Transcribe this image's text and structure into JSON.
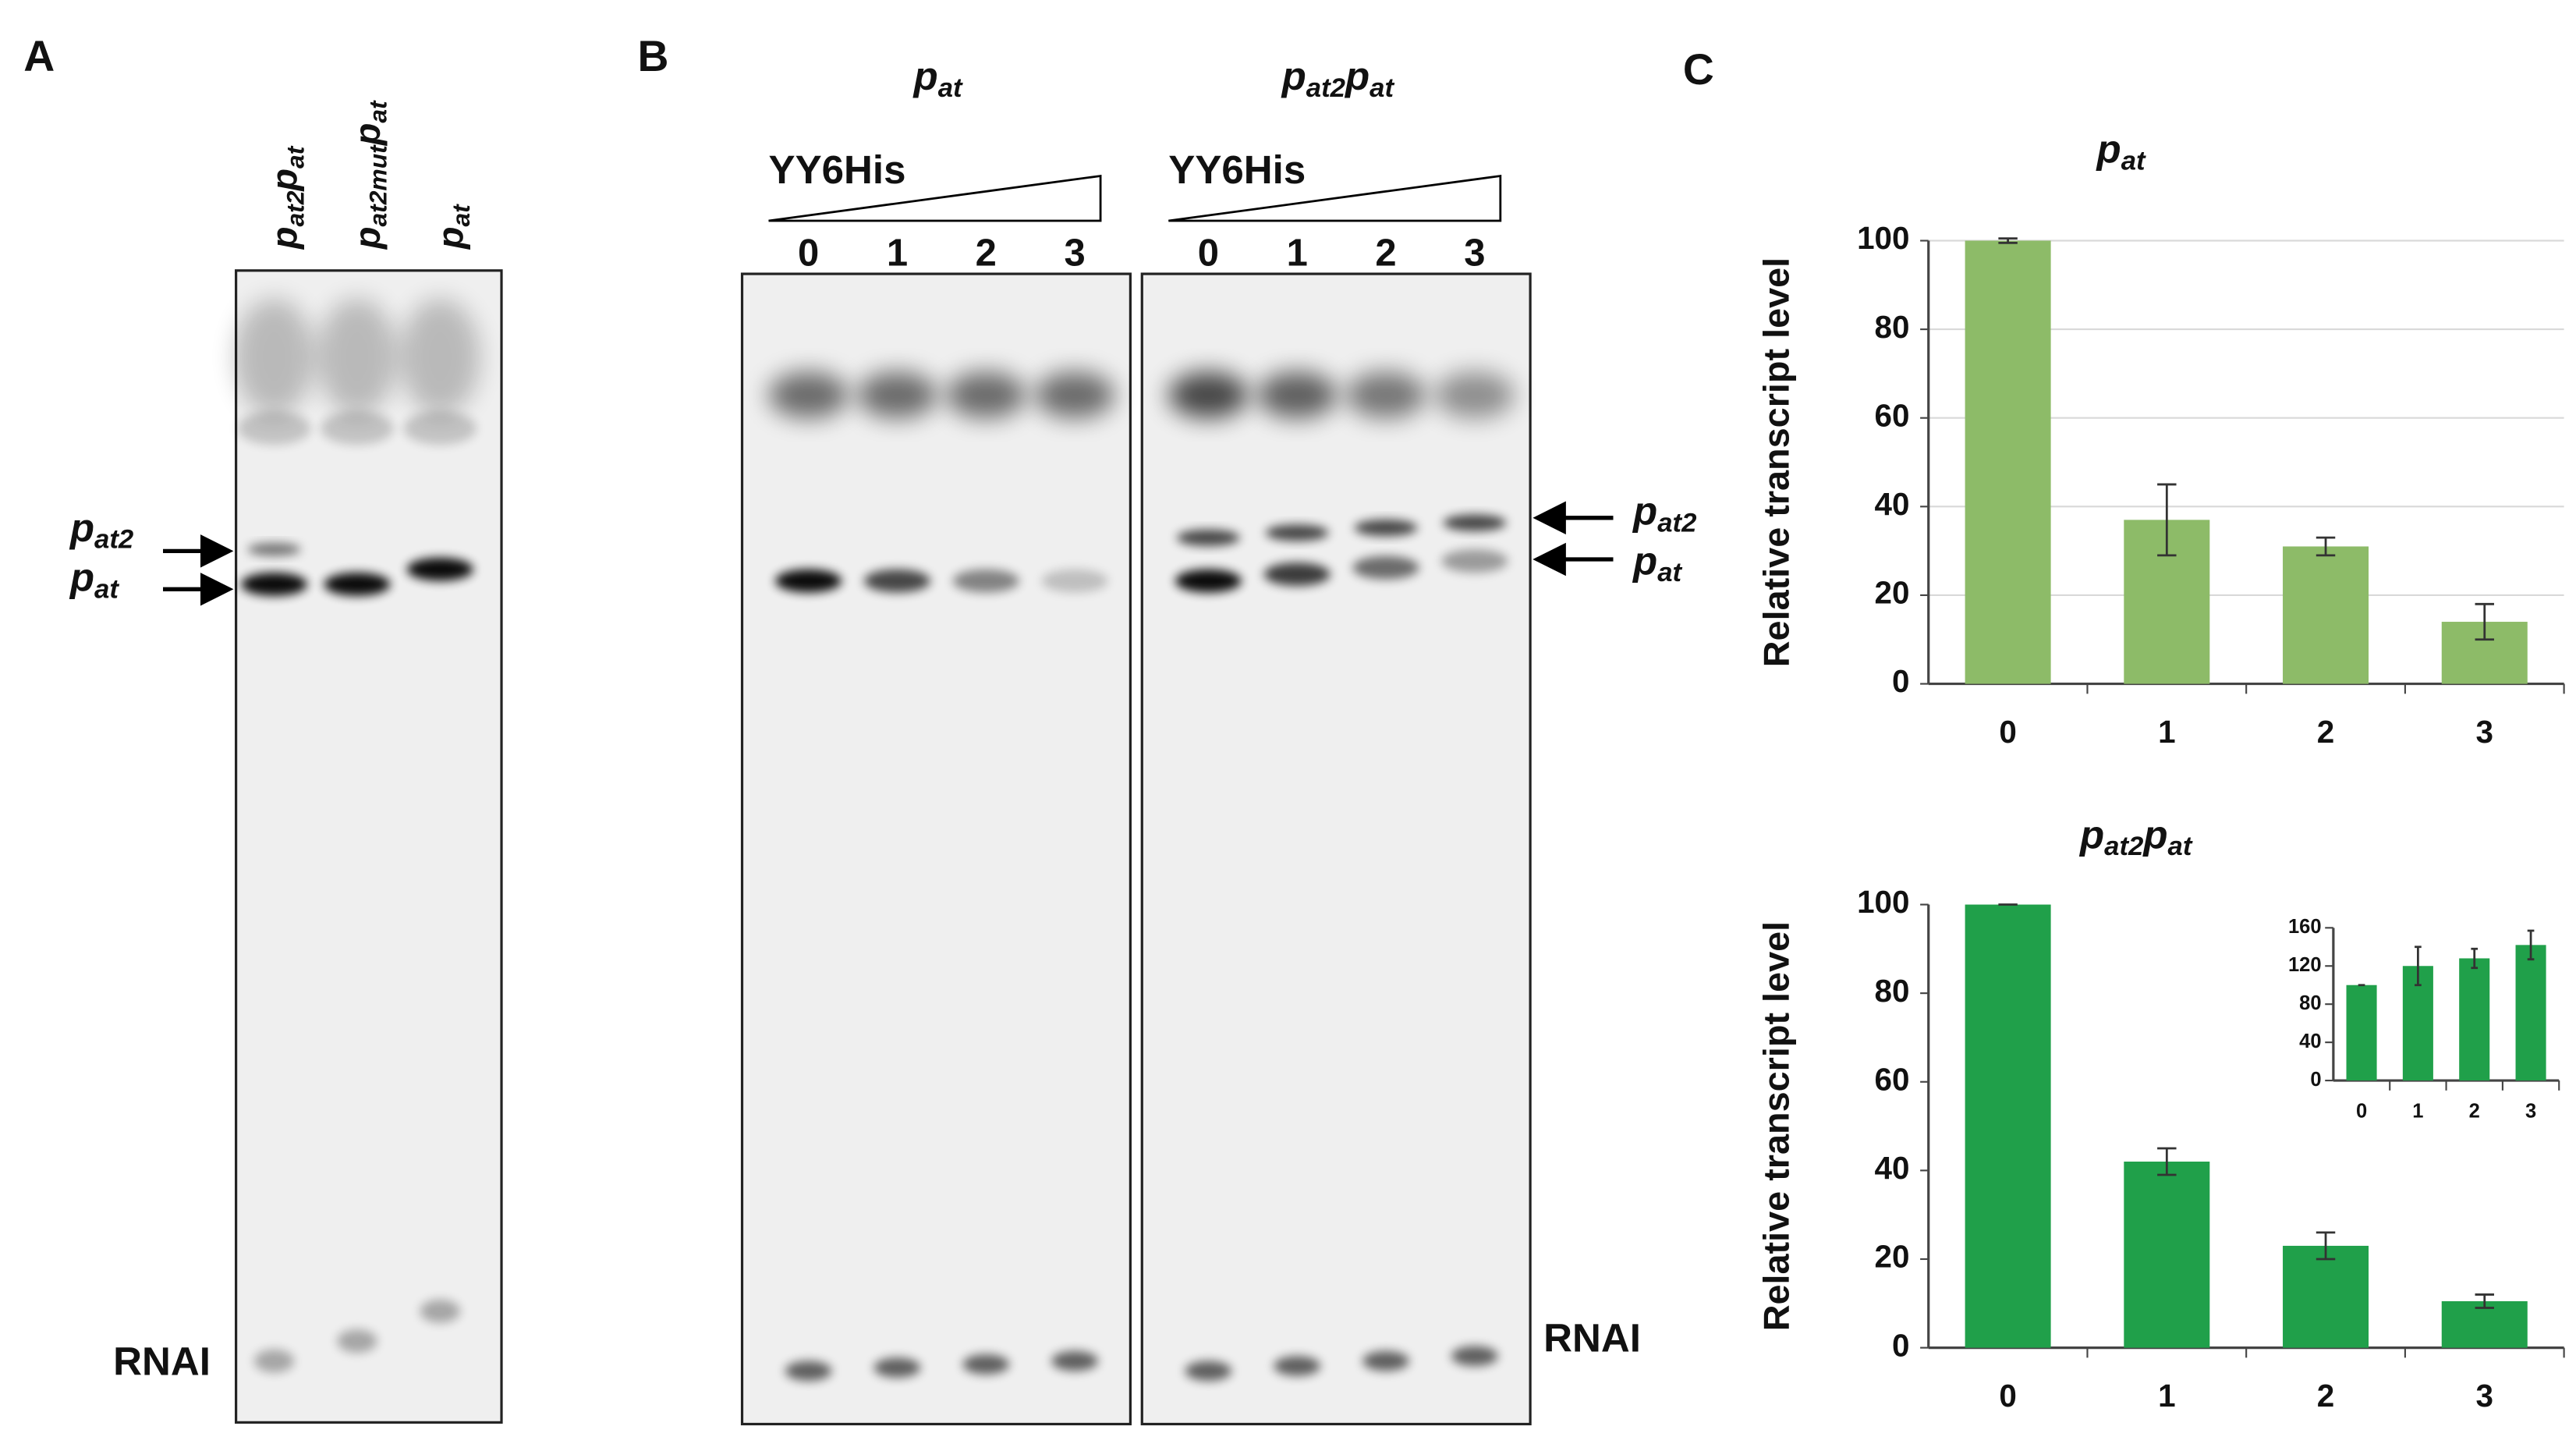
{
  "panel_a": {
    "label": "A",
    "lanes": [
      [
        "p",
        "at2",
        "p",
        "at"
      ],
      [
        "p",
        "at2mut",
        "p",
        "at"
      ],
      [
        "p",
        "at"
      ]
    ],
    "bands": [
      [
        "p",
        "at2"
      ],
      [
        "p",
        "at"
      ]
    ],
    "marker": "RNAI"
  },
  "panel_b": {
    "label": "B",
    "gels": [
      {
        "title": [
          "p",
          "at"
        ],
        "protein": "YY6His",
        "lanes": [
          "0",
          "1",
          "2",
          "3"
        ]
      },
      {
        "title": [
          "p",
          "at2",
          "p",
          "at"
        ],
        "protein": "YY6His",
        "lanes": [
          "0",
          "1",
          "2",
          "3"
        ]
      }
    ],
    "bands": [
      [
        "p",
        "at2"
      ],
      [
        "p",
        "at"
      ]
    ],
    "marker": "RNAI"
  },
  "panel_c": {
    "label": "C"
  },
  "chart_data": [
    {
      "type": "bar",
      "title": [
        "p",
        "at"
      ],
      "y_label": "Relative transcript level",
      "categories": [
        "0",
        "1",
        "2",
        "3"
      ],
      "values": [
        100,
        37,
        31,
        14
      ],
      "errors": [
        0.5,
        8,
        2,
        4
      ],
      "color": "#8dbb68",
      "ylim": [
        0,
        100
      ],
      "yticks": [
        0,
        20,
        40,
        60,
        80,
        100
      ],
      "grid": true
    },
    {
      "type": "bar",
      "title": [
        "p",
        "at2",
        "p",
        "at"
      ],
      "y_label": "Relative transcript level",
      "categories": [
        "0",
        "1",
        "2",
        "3"
      ],
      "values": [
        100,
        42,
        23,
        10.5
      ],
      "errors": [
        0,
        3,
        3,
        1.5
      ],
      "color": "#20a04a",
      "ylim": [
        0,
        100
      ],
      "yticks": [
        0,
        20,
        40,
        60,
        80,
        100
      ],
      "grid": false
    },
    {
      "type": "bar",
      "categories": [
        "0",
        "1",
        "2",
        "3"
      ],
      "values": [
        100,
        120,
        128,
        142
      ],
      "errors": [
        0,
        20,
        10,
        15
      ],
      "color": "#20a04a",
      "ylim": [
        0,
        160
      ],
      "yticks": [
        0,
        40,
        80,
        120,
        160
      ],
      "grid": false
    }
  ]
}
